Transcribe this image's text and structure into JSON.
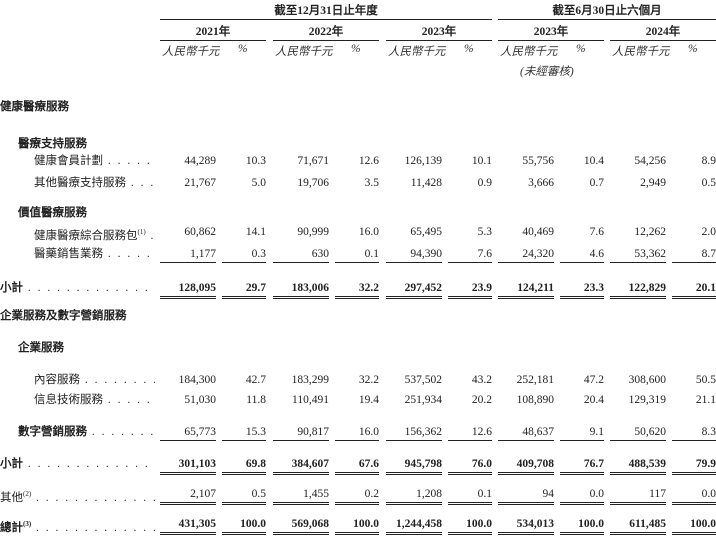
{
  "header": {
    "period_groups": [
      "截至12月31日止年度",
      "截至6月30日止六個月"
    ],
    "years": [
      "2021年",
      "2022年",
      "2023年",
      "2023年",
      "2024年"
    ],
    "unit_amount": "人民幣千元",
    "unit_pct": "%",
    "unaudited": "(未經審核)"
  },
  "rows": [
    {
      "type": "section",
      "label": "健康醫療服務"
    },
    {
      "type": "subsection",
      "label": "醫療支持服務"
    },
    {
      "type": "item",
      "label": "健康會員計劃",
      "sup": "",
      "values": [
        "44,289",
        "10.3",
        "71,671",
        "12.6",
        "126,139",
        "10.1",
        "55,756",
        "10.4",
        "54,256",
        "8.9"
      ]
    },
    {
      "type": "item",
      "label": "其他醫療支持服務",
      "sup": "",
      "values": [
        "21,767",
        "5.0",
        "19,706",
        "3.5",
        "11,428",
        "0.9",
        "3,666",
        "0.7",
        "2,949",
        "0.5"
      ]
    },
    {
      "type": "subsection",
      "label": "價值醫療服務"
    },
    {
      "type": "item",
      "label": "健康醫療綜合服務包",
      "sup": "(1)",
      "values": [
        "60,862",
        "14.1",
        "90,999",
        "16.0",
        "65,495",
        "5.3",
        "40,469",
        "7.6",
        "12,262",
        "2.0"
      ]
    },
    {
      "type": "item",
      "label": "醫藥銷售業務",
      "sup": "",
      "values": [
        "1,177",
        "0.3",
        "630",
        "0.1",
        "94,390",
        "7.6",
        "24,320",
        "4.6",
        "53,362",
        "8.7"
      ]
    },
    {
      "type": "subtotal",
      "label": "小計",
      "sup": "",
      "values": [
        "128,095",
        "29.7",
        "183,006",
        "32.2",
        "297,452",
        "23.9",
        "124,211",
        "23.3",
        "122,829",
        "20.1"
      ]
    },
    {
      "type": "section",
      "label": "企業服務及數字營銷服務"
    },
    {
      "type": "subsection",
      "label": "企業服務"
    },
    {
      "type": "item",
      "label": "內容服務",
      "sup": "",
      "values": [
        "184,300",
        "42.7",
        "183,299",
        "32.2",
        "537,502",
        "43.2",
        "252,181",
        "47.2",
        "308,600",
        "50.5"
      ]
    },
    {
      "type": "item",
      "label": "信息技術服務",
      "sup": "",
      "values": [
        "51,030",
        "11.8",
        "110,491",
        "19.4",
        "251,934",
        "20.2",
        "108,890",
        "20.4",
        "129,319",
        "21.1"
      ]
    },
    {
      "type": "subitem",
      "label": "數字營銷服務",
      "sup": "",
      "values": [
        "65,773",
        "15.3",
        "90,817",
        "16.0",
        "156,362",
        "12.6",
        "48,637",
        "9.1",
        "50,620",
        "8.3"
      ]
    },
    {
      "type": "subtotal",
      "label": "小計",
      "sup": "",
      "values": [
        "301,103",
        "69.8",
        "384,607",
        "67.6",
        "945,798",
        "76.0",
        "409,708",
        "76.7",
        "488,539",
        "79.9"
      ]
    },
    {
      "type": "other",
      "label": "其他",
      "sup": "(2)",
      "values": [
        "2,107",
        "0.5",
        "1,455",
        "0.2",
        "1,208",
        "0.1",
        "94",
        "0.0",
        "117",
        "0.0"
      ]
    },
    {
      "type": "total",
      "label": "總計",
      "sup": "(3)",
      "values": [
        "431,305",
        "100.0",
        "569,068",
        "100.0",
        "1,244,458",
        "100.0",
        "534,013",
        "100.0",
        "611,485",
        "100.0"
      ]
    }
  ]
}
